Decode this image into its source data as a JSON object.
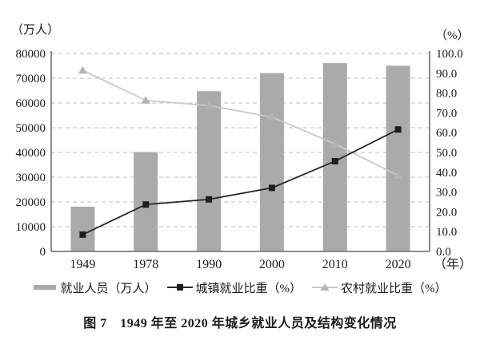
{
  "figure": {
    "caption": "图 7　1949 年至 2020 年城乡就业人员及结构变化情况"
  },
  "chart_data": {
    "type": "bar",
    "title": "图 7　1949 年至 2020 年城乡就业人员及结构变化情况",
    "categories": [
      "1949",
      "1978",
      "1990",
      "2000",
      "2010",
      "2020"
    ],
    "series": [
      {
        "name": "就业人员（万人）",
        "type": "bar",
        "axis": "left",
        "color": "#aaaaaa",
        "values": [
          18082,
          40152,
          64749,
          72085,
          76105,
          75064
        ]
      },
      {
        "name": "城镇就业比重（%）",
        "type": "line",
        "axis": "right",
        "marker": "square",
        "color": "#2b2420",
        "marker_color": "#211c18",
        "values": [
          8.5,
          23.7,
          26.3,
          32.1,
          45.6,
          61.6
        ]
      },
      {
        "name": "农村就业比重（%）",
        "type": "line",
        "axis": "right",
        "marker": "triangle",
        "color": "#c9c9c9",
        "marker_color": "#b3b3b3",
        "values": [
          91.5,
          76.3,
          73.7,
          67.9,
          54.3,
          38.4
        ]
      }
    ],
    "left_axis": {
      "label": "（万人）",
      "min": 0,
      "max": 80000,
      "tick_step": 10000,
      "ticks": [
        "0",
        "10000",
        "20000",
        "30000",
        "40000",
        "50000",
        "60000",
        "70000",
        "80000"
      ]
    },
    "right_axis": {
      "label": "（%）",
      "min": 0,
      "max": 100,
      "tick_step": 10,
      "ticks": [
        "0.0",
        "10.0",
        "20.0",
        "30.0",
        "40.0",
        "50.0",
        "60.0",
        "70.0",
        "80.0",
        "90.0",
        "100.0"
      ]
    },
    "x_axis": {
      "unit_label": "（年）"
    },
    "grid": {
      "horizontal": true,
      "style": "dashed",
      "color": "#c9c9c9"
    },
    "axis_color": "#7d7d7d",
    "legend_position": "bottom"
  }
}
